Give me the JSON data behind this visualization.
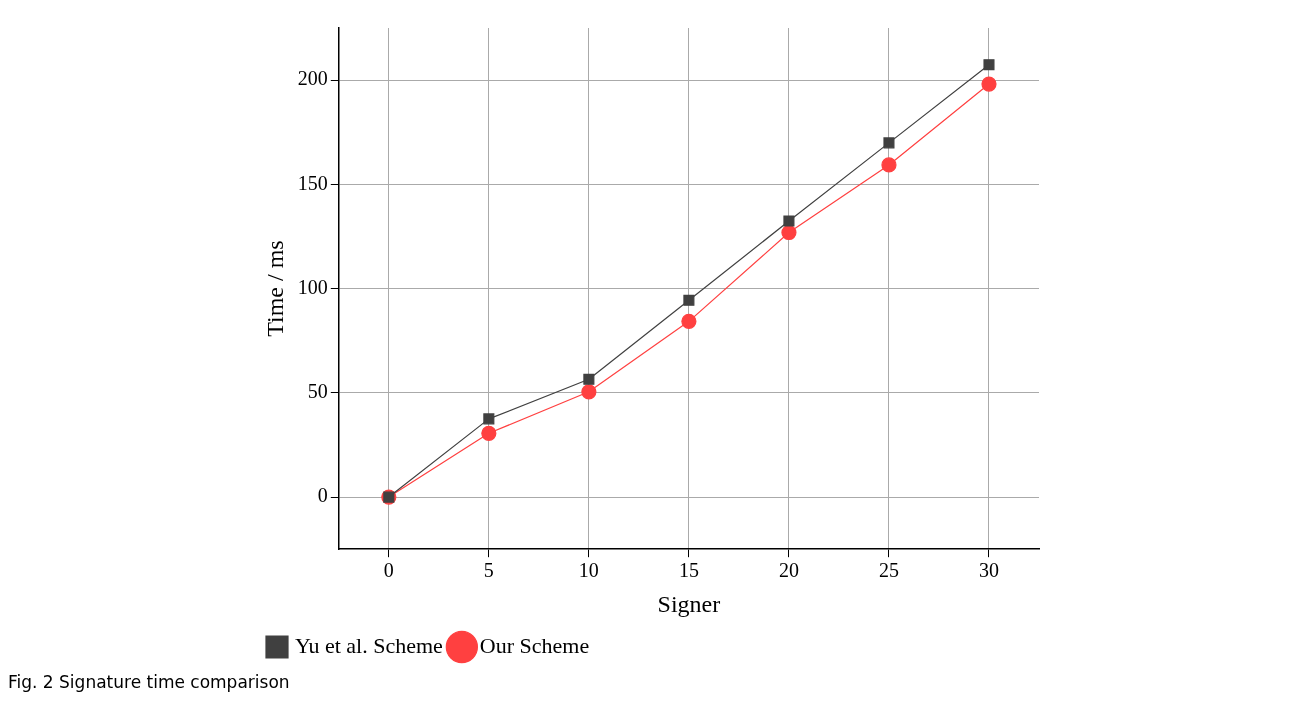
{
  "chart_data": {
    "type": "line",
    "xlabel": "Signer",
    "ylabel": "Time / ms",
    "x": [
      0,
      5,
      10,
      15,
      20,
      25,
      30
    ],
    "series": [
      {
        "name": "Yu et al. Scheme",
        "color": "#404040",
        "marker": "square",
        "values": [
          0,
          37.5,
          56.5,
          94.4,
          132.4,
          169.9,
          207.4
        ]
      },
      {
        "name": "Our Scheme",
        "color": "#ff4040",
        "marker": "circle",
        "values": [
          0,
          30.6,
          50.5,
          84.3,
          126.9,
          159.3,
          198.1
        ]
      }
    ],
    "xlim": [
      -2.5,
      32.5
    ],
    "xticks": [
      0,
      5,
      10,
      15,
      20,
      25,
      30
    ],
    "ylim": [
      -25,
      225
    ],
    "yticks": [
      0,
      50,
      100,
      150,
      200
    ],
    "grid": true,
    "legend": "bottom left",
    "line_style": "solid",
    "annotations": [
      "Fig. 2 Signature time comparison"
    ]
  }
}
